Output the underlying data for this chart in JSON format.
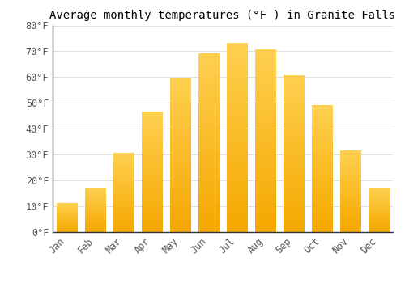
{
  "title": "Average monthly temperatures (°F ) in Granite Falls",
  "months": [
    "Jan",
    "Feb",
    "Mar",
    "Apr",
    "May",
    "Jun",
    "Jul",
    "Aug",
    "Sep",
    "Oct",
    "Nov",
    "Dec"
  ],
  "values": [
    11,
    17,
    30.5,
    46.5,
    59.5,
    69,
    73,
    70.5,
    60.5,
    49,
    31.5,
    17
  ],
  "bar_color_bottom": "#F5A800",
  "bar_color_top": "#FFD050",
  "ylim": [
    0,
    80
  ],
  "yticks": [
    0,
    10,
    20,
    30,
    40,
    50,
    60,
    70,
    80
  ],
  "ytick_labels": [
    "0°F",
    "10°F",
    "20°F",
    "30°F",
    "40°F",
    "50°F",
    "60°F",
    "70°F",
    "80°F"
  ],
  "title_fontsize": 10,
  "tick_fontsize": 8.5,
  "background_color": "#ffffff",
  "grid_color": "#e0e0e0",
  "font_family": "monospace",
  "bar_width": 0.72
}
